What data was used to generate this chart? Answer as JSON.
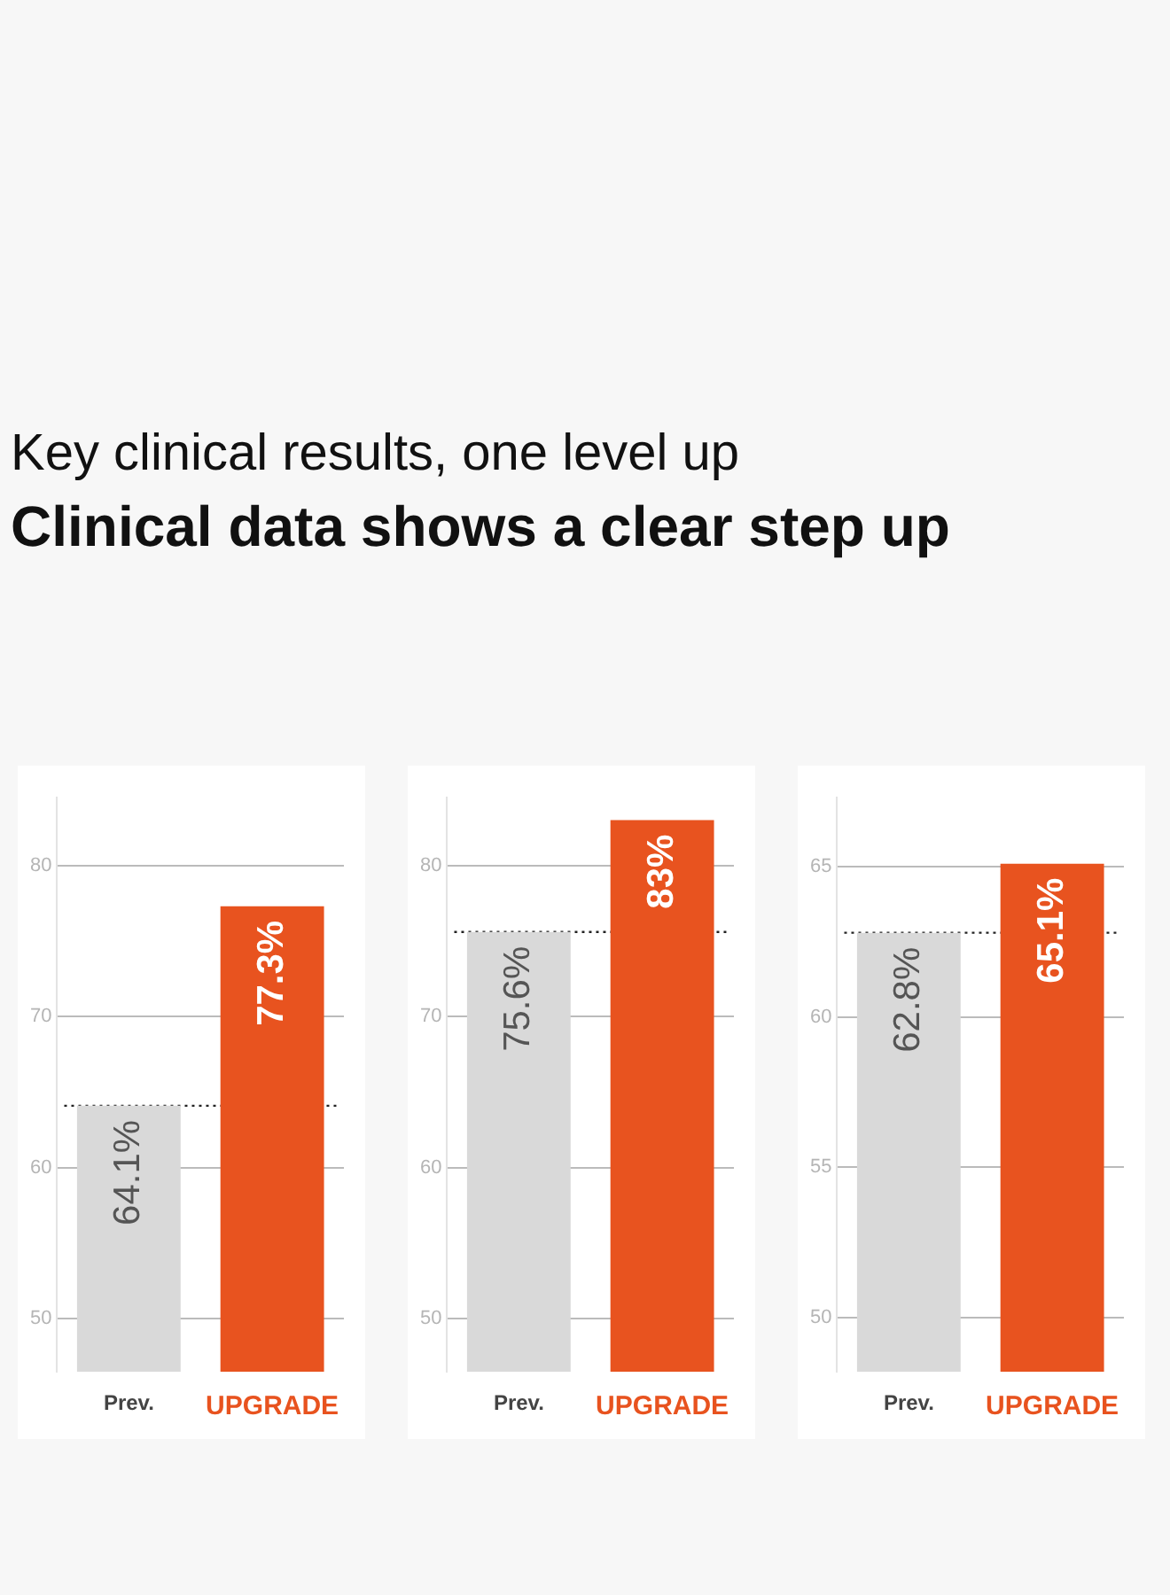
{
  "chart_data": [
    {
      "type": "bar",
      "title": "Key clinical results, one level up",
      "subtitle": "Clinical data shows a clear step up",
      "categories": [
        "Prev.",
        "UPGRADE"
      ],
      "values": [
        64.1,
        77.3
      ],
      "colors": [
        "#d9d9d9",
        "#e8531f"
      ],
      "value_labels": [
        "64.1%",
        "77.3%"
      ],
      "ylim": [
        46.5,
        84.5
      ],
      "yticks": [
        50,
        60,
        70,
        80
      ],
      "grid": "y",
      "ref_lines": [
        {
          "axis": "y",
          "value": 64.1,
          "color": "#222222",
          "line_style": "dotted"
        }
      ]
    },
    {
      "type": "bar",
      "categories": [
        "Prev.",
        "UPGRADE"
      ],
      "values": [
        75.6,
        83
      ],
      "colors": [
        "#d9d9d9",
        "#e8531f"
      ],
      "value_labels": [
        "75.6%",
        "83%"
      ],
      "ylim": [
        46.5,
        84.5
      ],
      "yticks": [
        50,
        60,
        70,
        80
      ],
      "grid": "y",
      "ref_lines": [
        {
          "axis": "y",
          "value": 75.6,
          "color": "#222222",
          "line_style": "dotted"
        }
      ]
    },
    {
      "type": "bar",
      "categories": [
        "Prev.",
        "UPGRADE"
      ],
      "values": [
        62.8,
        65.1
      ],
      "colors": [
        "#d9d9d9",
        "#e8531f"
      ],
      "value_labels": [
        "62.8%",
        "65.1%"
      ],
      "ylim": [
        48.2,
        67.3
      ],
      "yticks": [
        50,
        55,
        60,
        65
      ],
      "grid": "y",
      "ref_lines": [
        {
          "axis": "y",
          "value": 62.8,
          "color": "#222222",
          "line_style": "dotted"
        }
      ]
    }
  ]
}
